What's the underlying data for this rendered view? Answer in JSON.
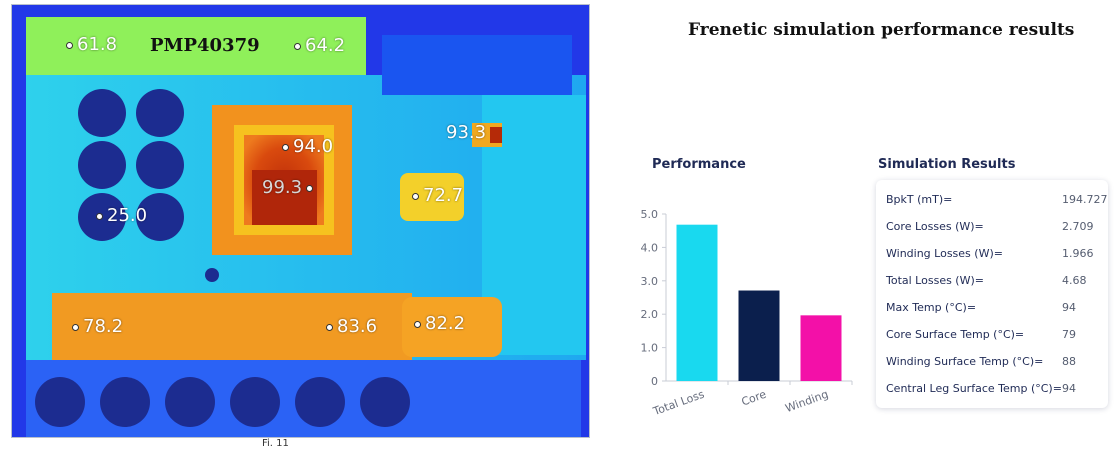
{
  "thermal_image": {
    "board_id": "PMP40379",
    "probes": [
      {
        "id": "p1",
        "label": "61.8"
      },
      {
        "id": "p2",
        "label": "64.2"
      },
      {
        "id": "p3",
        "label": "94.0"
      },
      {
        "id": "p4",
        "label": "99.3"
      },
      {
        "id": "p5",
        "label": "93.3"
      },
      {
        "id": "p6",
        "label": "72.7"
      },
      {
        "id": "p7",
        "label": "25.0"
      },
      {
        "id": "p8",
        "label": "78.2"
      },
      {
        "id": "p9",
        "label": "83.6"
      },
      {
        "id": "p10",
        "label": "82.2"
      }
    ],
    "caption_fragment": "Fi.  11"
  },
  "page_title": "Frenetic simulation performance results",
  "performance": {
    "title": "Performance",
    "colors": {
      "Total Loss": "#19d9ef",
      "Core": "#0b1f4d",
      "Winding": "#f310a8"
    }
  },
  "results": {
    "title": "Simulation Results",
    "rows": [
      {
        "label": "BpkT (mT)=",
        "value": "194.727"
      },
      {
        "label": "Core Losses (W)=",
        "value": "2.709"
      },
      {
        "label": "Winding Losses (W)=",
        "value": "1.966"
      },
      {
        "label": "Total Losses (W)=",
        "value": "4.68"
      },
      {
        "label": "Max Temp (°C)=",
        "value": "94"
      },
      {
        "label": "Core Surface Temp (°C)=",
        "value": "79"
      },
      {
        "label": "Winding Surface Temp (°C)=",
        "value": "88"
      },
      {
        "label": "Central Leg Surface Temp (°C)=",
        "value": "94"
      }
    ]
  },
  "chart_data": {
    "type": "bar",
    "title": "Performance",
    "categories": [
      "Total Loss",
      "Core",
      "Winding"
    ],
    "values": [
      4.68,
      2.709,
      1.966
    ],
    "ylim": [
      0,
      5
    ],
    "yticks": [
      "0",
      "1.0",
      "2.0",
      "3.0",
      "4.0",
      "5.0"
    ],
    "grid": false,
    "xlabel": "",
    "ylabel": ""
  }
}
